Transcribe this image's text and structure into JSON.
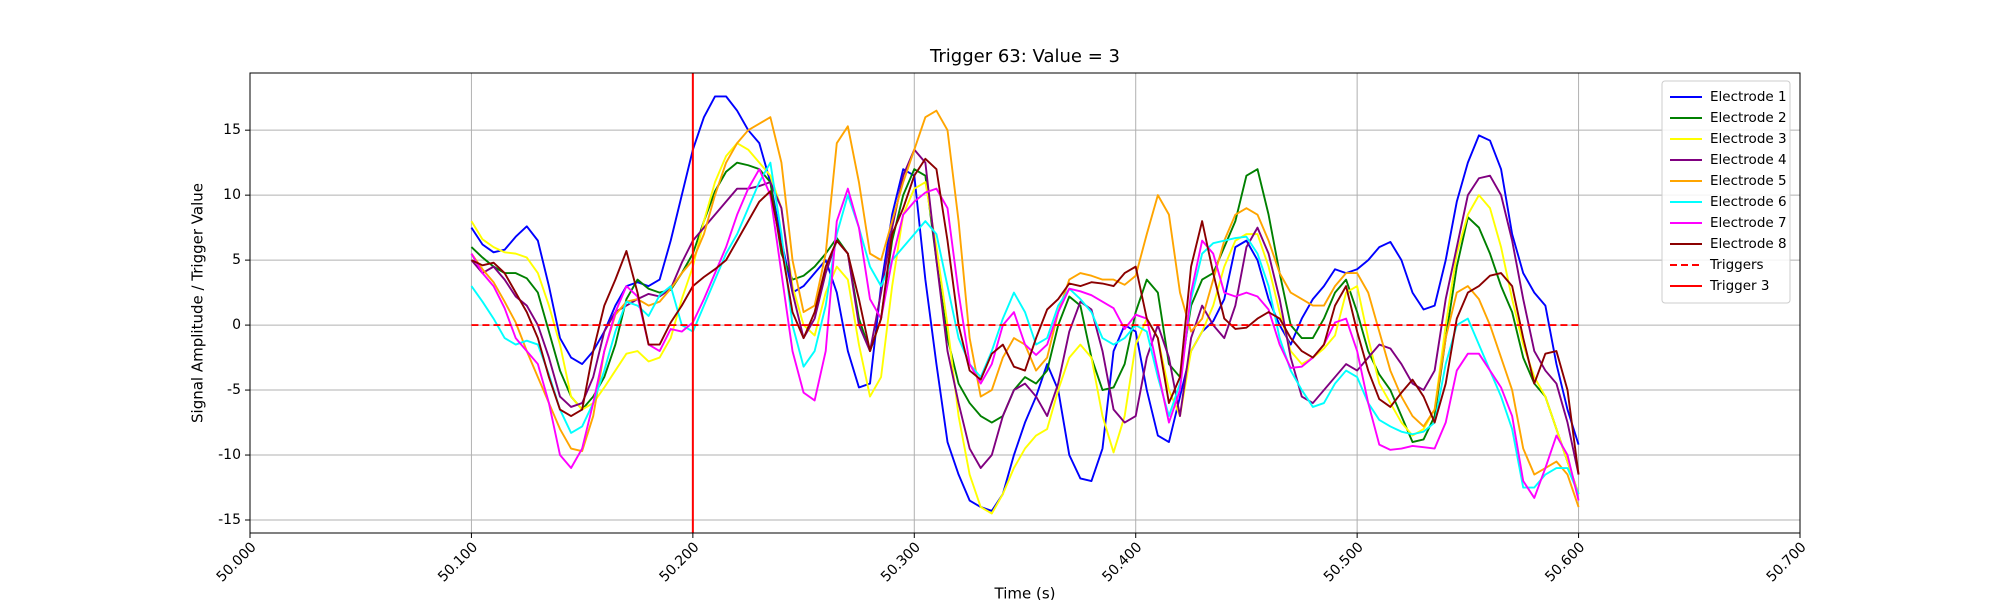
{
  "chart_data": {
    "type": "line",
    "title": "Trigger 63: Value = 3",
    "xlabel": "Time (s)",
    "ylabel": "Signal Amplitude / Trigger Value",
    "grid": true,
    "legend": "upper right",
    "xlim": [
      50.0,
      50.7
    ],
    "ylim": [
      -16,
      19.4
    ],
    "xticks": [
      {
        "value": 50.0,
        "label": "50.000"
      },
      {
        "value": 50.1,
        "label": "50.100"
      },
      {
        "value": 50.2,
        "label": "50.200"
      },
      {
        "value": 50.3,
        "label": "50.300"
      },
      {
        "value": 50.4,
        "label": "50.400"
      },
      {
        "value": 50.5,
        "label": "50.500"
      },
      {
        "value": 50.6,
        "label": "50.600"
      },
      {
        "value": 50.7,
        "label": "50.700"
      }
    ],
    "yticks": [
      -15,
      -10,
      -5,
      0,
      5,
      10,
      15
    ],
    "x": [
      50.1,
      50.105,
      50.11,
      50.115,
      50.12,
      50.125,
      50.13,
      50.135,
      50.14,
      50.145,
      50.15,
      50.155,
      50.16,
      50.165,
      50.17,
      50.175,
      50.18,
      50.185,
      50.19,
      50.195,
      50.2,
      50.205,
      50.21,
      50.215,
      50.22,
      50.225,
      50.23,
      50.235,
      50.24,
      50.245,
      50.25,
      50.255,
      50.26,
      50.265,
      50.27,
      50.275,
      50.28,
      50.285,
      50.29,
      50.295,
      50.3,
      50.305,
      50.31,
      50.315,
      50.32,
      50.325,
      50.33,
      50.335,
      50.34,
      50.345,
      50.35,
      50.355,
      50.36,
      50.365,
      50.37,
      50.375,
      50.38,
      50.385,
      50.39,
      50.395,
      50.4,
      50.405,
      50.41,
      50.415,
      50.42,
      50.425,
      50.43,
      50.435,
      50.44,
      50.445,
      50.45,
      50.455,
      50.46,
      50.465,
      50.47,
      50.475,
      50.48,
      50.485,
      50.49,
      50.495,
      50.5,
      50.505,
      50.51,
      50.515,
      50.52,
      50.525,
      50.53,
      50.535,
      50.54,
      50.545,
      50.55,
      50.555,
      50.56,
      50.565,
      50.57,
      50.575,
      50.58,
      50.585,
      50.59,
      50.595,
      50.6
    ],
    "series": [
      {
        "name": "Electrode 1",
        "color": "blue",
        "values": [
          7.5,
          6.2,
          5.6,
          5.8,
          6.8,
          7.6,
          6.5,
          3,
          -1,
          -2.5,
          -3,
          -2,
          -0.5,
          1.5,
          3,
          3.3,
          3,
          3.5,
          6.5,
          10,
          13.5,
          16,
          17.6,
          17.6,
          16.5,
          15,
          14,
          11,
          6.5,
          2.5,
          3,
          4,
          5,
          2.5,
          -2,
          -4.8,
          -4.5,
          3,
          8.5,
          12,
          11.5,
          3.5,
          -3,
          -9,
          -11.5,
          -13.5,
          -14,
          -14.3,
          -13,
          -10,
          -7.5,
          -5.5,
          -3,
          -5,
          -10,
          -11.8,
          -12,
          -9.5,
          -2,
          0,
          -0.5,
          -5,
          -8.5,
          -9,
          -5.5,
          -2,
          -0.5,
          0.3,
          2,
          6,
          6.5,
          5,
          2,
          0,
          -1.5,
          0.5,
          2,
          3,
          4.3,
          4,
          4.3,
          5,
          6,
          6.4,
          5,
          2.5,
          1.2,
          1.5,
          5,
          9.5,
          12.5,
          14.6,
          14.2,
          12,
          7,
          4,
          2.5,
          1.5,
          -3,
          -6.5,
          -9.2
        ]
      },
      {
        "name": "Electrode 2",
        "color": "green",
        "values": [
          6,
          5.2,
          4.5,
          4,
          4,
          3.6,
          2.5,
          -0.5,
          -3.5,
          -5.5,
          -6.5,
          -5.5,
          -4,
          -1.5,
          2,
          3.5,
          2.8,
          2.5,
          2.7,
          4,
          5.5,
          8,
          10.3,
          11.8,
          12.5,
          12.3,
          12,
          11,
          5.5,
          3.5,
          3.8,
          4.5,
          5.5,
          6.7,
          5.5,
          0.5,
          -2,
          0.5,
          6.5,
          10,
          12,
          11.5,
          5,
          -1,
          -4.5,
          -6,
          -7,
          -7.5,
          -7,
          -5,
          -4,
          -4.5,
          -3.5,
          0,
          2.2,
          1.5,
          -2.5,
          -5,
          -4.8,
          -3,
          1,
          3.5,
          2.5,
          -3,
          -4,
          1.5,
          3.5,
          4,
          6,
          8,
          11.5,
          12,
          8.5,
          4,
          0,
          -1,
          -1,
          0.5,
          2.5,
          3.5,
          1,
          -2,
          -3.8,
          -5,
          -7,
          -9,
          -8.8,
          -7,
          -1,
          4.5,
          8.3,
          7.5,
          5.5,
          3,
          1,
          -2.5,
          -4.5,
          -5.5,
          -8,
          -10.5,
          -13
        ]
      },
      {
        "name": "Electrode 3",
        "color": "yellow",
        "values": [
          8,
          6.6,
          6,
          5.6,
          5.5,
          5.2,
          4,
          1.5,
          -1.5,
          -5.5,
          -6.5,
          -6,
          -4.8,
          -3.5,
          -2.2,
          -2,
          -2.8,
          -2.5,
          -1,
          2,
          4.5,
          8,
          11,
          13,
          14,
          13.5,
          12.5,
          11.5,
          9,
          3,
          0,
          -0.8,
          2.5,
          4.5,
          3.5,
          -1.5,
          -5.5,
          -4,
          3,
          8.5,
          10.5,
          11,
          6,
          0,
          -7,
          -11.5,
          -14,
          -14.5,
          -13,
          -11,
          -9.5,
          -8.5,
          -8,
          -5,
          -2.5,
          -1.5,
          -2.5,
          -7,
          -9.8,
          -7,
          -1.5,
          0.5,
          -1,
          -5,
          -7,
          -2,
          -0.5,
          1.5,
          4.5,
          6.5,
          7,
          7,
          4.5,
          1,
          -2,
          -3,
          -2.5,
          -1.8,
          -0.8,
          2.5,
          3,
          -1,
          -4.5,
          -6,
          -7.5,
          -8.5,
          -8,
          -6.5,
          0,
          5.5,
          8.5,
          10,
          9,
          6,
          2,
          -1.5,
          -4,
          -5.5,
          -8,
          -10.5,
          -13
        ]
      },
      {
        "name": "Electrode 4",
        "color": "purple",
        "values": [
          5,
          4,
          4.5,
          3.5,
          2.2,
          1.5,
          0,
          -2.5,
          -5.5,
          -6.3,
          -6,
          -4,
          -0.5,
          1,
          1.5,
          2,
          2.4,
          2.2,
          2.8,
          4.8,
          6.5,
          7.5,
          8.5,
          9.5,
          10.5,
          10.5,
          10.7,
          11,
          9,
          2.5,
          -1,
          0.5,
          4,
          6.5,
          5.5,
          0,
          -2,
          2.5,
          7.5,
          11.5,
          13.5,
          12.5,
          5,
          -2,
          -6,
          -9.5,
          -11,
          -10,
          -7,
          -5,
          -4.5,
          -5.5,
          -7,
          -4.5,
          -0.5,
          1.8,
          1.2,
          -2,
          -6.5,
          -7.5,
          -7,
          -2.5,
          0,
          -2.5,
          -7,
          -1,
          1.5,
          0,
          -1,
          1.5,
          6,
          7.5,
          5.5,
          2,
          -2.5,
          -5.5,
          -6,
          -5,
          -4,
          -3,
          -3.5,
          -2.5,
          -1.5,
          -1.8,
          -3,
          -4.5,
          -5,
          -3.5,
          2,
          6,
          10,
          11.3,
          11.5,
          10,
          6.5,
          2,
          -2,
          -3.5,
          -4.5,
          -7.5,
          -11.5
        ]
      },
      {
        "name": "Electrode 5",
        "color": "orange",
        "values": [
          5.5,
          4.3,
          3.3,
          1.8,
          0.2,
          -2,
          -4,
          -6,
          -8,
          -9.5,
          -9.7,
          -7,
          -2,
          0.8,
          1.8,
          2,
          1.5,
          1.8,
          2.8,
          4,
          5,
          7,
          10,
          12.5,
          14,
          15,
          15.5,
          16,
          12.5,
          5,
          1,
          1.5,
          5.5,
          14,
          15.3,
          11,
          5.5,
          5,
          8,
          11,
          13.5,
          16,
          16.5,
          15,
          8,
          -1,
          -5.5,
          -5,
          -2.5,
          -1,
          -1.5,
          -3.5,
          -2.5,
          1,
          3.5,
          4,
          3.8,
          3.5,
          3.5,
          3.1,
          3.8,
          7,
          10,
          8.5,
          2.5,
          -0.5,
          0.5,
          3.5,
          6.5,
          8.5,
          9,
          8.5,
          6.5,
          4,
          2.5,
          2,
          1.5,
          1.5,
          3,
          4,
          4,
          2.5,
          -0.5,
          -3.5,
          -5.5,
          -7,
          -7.8,
          -6.5,
          -1,
          2.5,
          3,
          2,
          0,
          -2.5,
          -5,
          -9.5,
          -11.5,
          -11,
          -10.5,
          -11.5,
          -14
        ]
      },
      {
        "name": "Electrode 6",
        "color": "cyan",
        "values": [
          3,
          1.8,
          0.5,
          -1,
          -1.5,
          -1.2,
          -1.5,
          -3.8,
          -6.5,
          -8.3,
          -7.8,
          -6,
          -3.5,
          -0.5,
          1.8,
          1.5,
          0.7,
          2.3,
          3,
          0,
          -0.5,
          1.5,
          3.5,
          5.5,
          7,
          9,
          11,
          12.5,
          7,
          0,
          -3.2,
          -2,
          1.5,
          7,
          10,
          7.5,
          4.5,
          3,
          5,
          6,
          7,
          8,
          7,
          3,
          -1,
          -3,
          -4,
          -2,
          0.5,
          2.5,
          1,
          -1.5,
          -1,
          1.5,
          2.8,
          2,
          1,
          -1,
          -1.5,
          -1,
          0,
          -0.5,
          -4,
          -7,
          -4.5,
          2,
          5.5,
          6.3,
          6.5,
          6.7,
          6.8,
          5.5,
          3,
          -1,
          -3.5,
          -5,
          -6.3,
          -6,
          -4.5,
          -3.5,
          -4,
          -6,
          -7.3,
          -7.8,
          -8.2,
          -8.4,
          -8.2,
          -7.5,
          -3,
          0,
          0.5,
          -1.5,
          -3.5,
          -5.5,
          -8,
          -12.5,
          -12.5,
          -11.5,
          -11,
          -11,
          -13
        ]
      },
      {
        "name": "Electrode 7",
        "color": "magenta",
        "values": [
          5.5,
          4,
          3,
          1.3,
          -1,
          -2,
          -3,
          -6,
          -10,
          -11,
          -9.5,
          -6,
          -2,
          1,
          3,
          2.2,
          -1.5,
          -2,
          -0.3,
          -0.5,
          0.2,
          2,
          4,
          6,
          8.5,
          10.5,
          12,
          10,
          4,
          -2,
          -5.2,
          -5.8,
          -2,
          8,
          10.5,
          7.5,
          2,
          0.5,
          5,
          8.5,
          9.5,
          10.2,
          10.5,
          9,
          2.5,
          -3,
          -4.5,
          -3,
          0,
          1,
          -1.5,
          -2.3,
          -1.5,
          1,
          2.8,
          2.6,
          2.3,
          1.8,
          1.3,
          -0.3,
          0.8,
          0.5,
          -3.5,
          -7.5,
          -5,
          2.5,
          6.5,
          5.5,
          2.5,
          2.2,
          2.5,
          2.2,
          1.2,
          -1.5,
          -3.3,
          -3.2,
          -2.5,
          -1.5,
          0.2,
          0.5,
          -2,
          -6,
          -9.2,
          -9.6,
          -9.5,
          -9.3,
          -9.4,
          -9.5,
          -7.5,
          -3.5,
          -2.2,
          -2.2,
          -3.5,
          -4.8,
          -7,
          -12,
          -13.3,
          -11,
          -8.5,
          -10,
          -13.5
        ]
      },
      {
        "name": "Electrode 8",
        "color": "darkred",
        "values": [
          5,
          4.6,
          4.8,
          4,
          2.5,
          1,
          -1,
          -4,
          -6.5,
          -7,
          -6.5,
          -2,
          1.5,
          3.5,
          5.7,
          2.5,
          -1.5,
          -1.5,
          0.2,
          1.5,
          3,
          3.7,
          4.3,
          5,
          6.5,
          8,
          9.5,
          10.3,
          6,
          1,
          -1,
          1,
          4.5,
          6.5,
          5.5,
          2,
          -2,
          0.5,
          7,
          9,
          11.5,
          12.8,
          12,
          6.5,
          0,
          -3.5,
          -4.2,
          -2.2,
          -1.5,
          -3.2,
          -3.5,
          -1,
          1.2,
          2,
          3.2,
          3,
          3.3,
          3.2,
          3,
          4,
          4.5,
          0.5,
          -1,
          -6,
          -4,
          4.5,
          8,
          4,
          0.5,
          -0.3,
          -0.2,
          0.5,
          1,
          0.5,
          -1,
          -2,
          -2.5,
          -1.5,
          1.5,
          3,
          -0.5,
          -3.5,
          -5.7,
          -6.3,
          -5.2,
          -4.2,
          -5.5,
          -7.5,
          -4.5,
          0.5,
          2.5,
          3,
          3.8,
          4,
          3,
          -1,
          -4.5,
          -2.2,
          -2,
          -5,
          -11.5
        ]
      },
      {
        "name": "Triggers",
        "color": "red",
        "dashed": true,
        "x": [
          50.1,
          50.6
        ],
        "values": [
          0,
          0
        ]
      }
    ],
    "vlines": [
      {
        "name": "Trigger 3",
        "color": "red",
        "x": 50.2
      }
    ]
  }
}
